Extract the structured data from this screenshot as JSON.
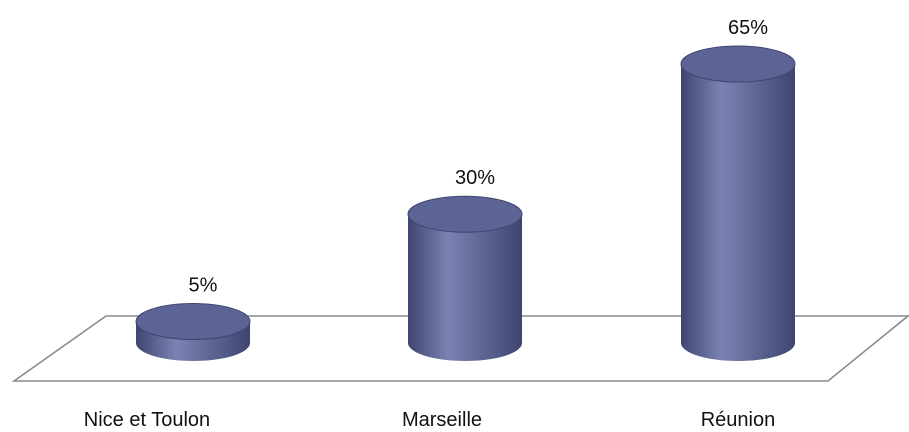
{
  "chart_data": {
    "type": "bar",
    "style": "3d-cylinder",
    "categories": [
      "Nice et Toulon",
      "Marseille",
      "Réunion"
    ],
    "values": [
      5,
      30,
      65
    ],
    "value_labels": [
      "5%",
      "30%",
      "65%"
    ],
    "ylim": [
      0,
      65
    ],
    "grid": false,
    "legend": "none",
    "colors": {
      "bar": "#5f6898",
      "bar_light": "#7a83b3",
      "bar_dark": "#3e4570",
      "top": "#5b6494",
      "top_edge": "#3e4570"
    }
  }
}
